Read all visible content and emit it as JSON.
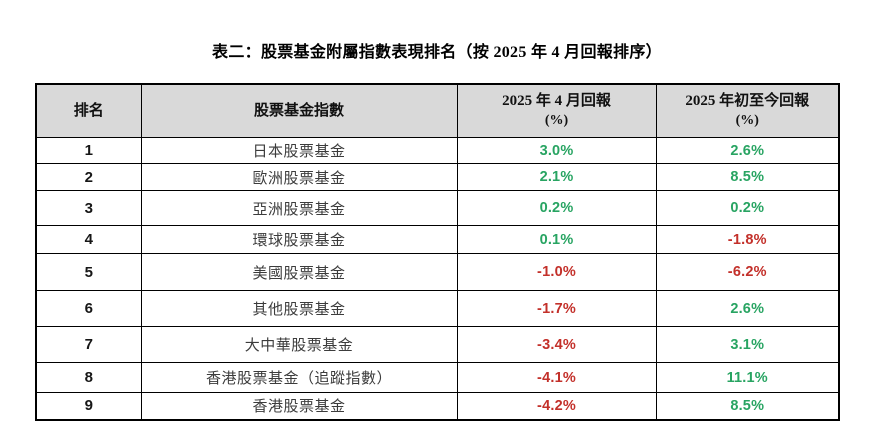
{
  "page": {
    "title": "表二：股票基金附屬指數表現排名（按 2025 年 4 月回報排序）"
  },
  "colors": {
    "positive": "#28a462",
    "negative": "#c3302a",
    "header_bg": "#d9d9d9",
    "border": "#000000"
  },
  "table": {
    "headers": {
      "rank": "排名",
      "fund": "股票基金指數",
      "april_line1": "2025 年 4 月回報",
      "april_line2": "(%)",
      "ytd_line1": "2025 年初至今回報",
      "ytd_line2": "(%)"
    },
    "rows": [
      {
        "rank": "1",
        "fund": "日本股票基金",
        "april_return": "3.0%",
        "ytd_return": "2.6%"
      },
      {
        "rank": "2",
        "fund": "歐洲股票基金",
        "april_return": "2.1%",
        "ytd_return": "8.5%"
      },
      {
        "rank": "3",
        "fund": "亞洲股票基金",
        "april_return": "0.2%",
        "ytd_return": "0.2%"
      },
      {
        "rank": "4",
        "fund": "環球股票基金",
        "april_return": "0.1%",
        "ytd_return": "-1.8%"
      },
      {
        "rank": "5",
        "fund": "美國股票基金",
        "april_return": "-1.0%",
        "ytd_return": "-6.2%"
      },
      {
        "rank": "6",
        "fund": "其他股票基金",
        "april_return": "-1.7%",
        "ytd_return": "2.6%"
      },
      {
        "rank": "7",
        "fund": "大中華股票基金",
        "april_return": "-3.4%",
        "ytd_return": "3.1%"
      },
      {
        "rank": "8",
        "fund": "香港股票基金（追蹤指數）",
        "april_return": "-4.1%",
        "ytd_return": "11.1%"
      },
      {
        "rank": "9",
        "fund": "香港股票基金",
        "april_return": "-4.2%",
        "ytd_return": "8.5%"
      }
    ]
  }
}
